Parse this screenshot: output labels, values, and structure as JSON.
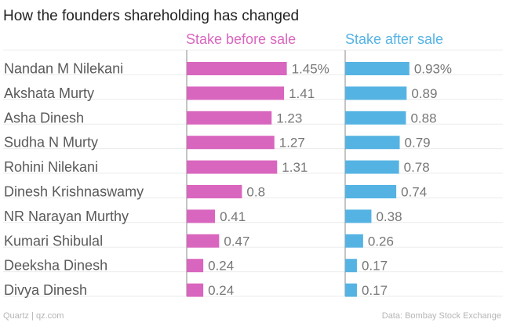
{
  "chart_data": {
    "type": "bar",
    "orientation": "horizontal",
    "title": "How the founders shareholding has changed",
    "categories": [
      "Nandan M Nilekani",
      "Akshata Murty",
      "Asha Dinesh",
      "Sudha N Murty",
      "Rohini Nilekani",
      "Dinesh Krishnaswamy",
      "NR Narayan Murthy",
      "Kumari Shibulal",
      "Deeksha Dinesh",
      "Divya Dinesh"
    ],
    "series": [
      {
        "name": "Stake before sale",
        "color": "#d966be",
        "values": [
          1.45,
          1.41,
          1.23,
          1.27,
          1.31,
          0.8,
          0.41,
          0.47,
          0.24,
          0.24
        ],
        "labels": [
          "1.45%",
          "1.41",
          "1.23",
          "1.27",
          "1.31",
          "0.8",
          "0.41",
          "0.47",
          "0.24",
          "0.24"
        ]
      },
      {
        "name": "Stake after sale",
        "color": "#55b3e3",
        "values": [
          0.93,
          0.89,
          0.88,
          0.79,
          0.78,
          0.74,
          0.38,
          0.26,
          0.17,
          0.17
        ],
        "labels": [
          "0.93%",
          "0.89",
          "0.88",
          "0.79",
          "0.78",
          "0.74",
          "0.38",
          "0.26",
          "0.17",
          "0.17"
        ]
      }
    ],
    "xlim": [
      0,
      1.6
    ],
    "xlabel": "",
    "ylabel": "",
    "source": "Data: Bombay Stock Exchange",
    "credit": "Quartz | qz.com"
  }
}
